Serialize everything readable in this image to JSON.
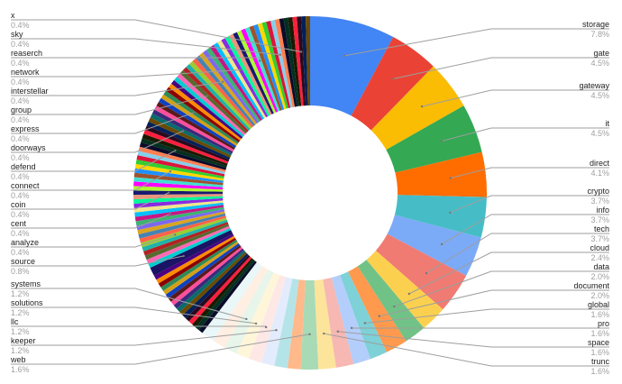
{
  "chart_data": {
    "type": "pie",
    "donut": true,
    "start": "top, clockwise",
    "title": "",
    "slices": [
      {
        "label": "storage",
        "pct": "7.8%",
        "v": 7.8,
        "color": "#4285f4"
      },
      {
        "label": "gate",
        "pct": "4.5%",
        "v": 4.5,
        "color": "#ea4335"
      },
      {
        "label": "gateway",
        "pct": "4.5%",
        "v": 4.5,
        "color": "#fbbc04"
      },
      {
        "label": "it",
        "pct": "4.5%",
        "v": 4.5,
        "color": "#34a853"
      },
      {
        "label": "direct",
        "pct": "4.1%",
        "v": 4.1,
        "color": "#ff6d01"
      },
      {
        "label": "crypto",
        "pct": "3.7%",
        "v": 3.7,
        "color": "#46bdc6"
      },
      {
        "label": "info",
        "pct": "3.7%",
        "v": 3.7,
        "color": "#7baaf7"
      },
      {
        "label": "tech",
        "pct": "3.7%",
        "v": 3.7,
        "color": "#f07b72"
      },
      {
        "label": "cloud",
        "pct": "2.4%",
        "v": 2.4,
        "color": "#fcd04f"
      },
      {
        "label": "data",
        "pct": "2.0%",
        "v": 2.0,
        "color": "#71c287"
      },
      {
        "label": "document",
        "pct": "2.0%",
        "v": 2.0,
        "color": "#ff994d"
      },
      {
        "label": "global",
        "pct": "1.6%",
        "v": 1.6,
        "color": "#7ed1d7"
      },
      {
        "label": "pro",
        "pct": "1.6%",
        "v": 1.6,
        "color": "#b3cefb"
      },
      {
        "label": "space",
        "pct": "1.6%",
        "v": 1.6,
        "color": "#f7b7b2"
      },
      {
        "label": "trunc",
        "pct": "1.6%",
        "v": 1.6,
        "color": "#fde49b"
      },
      {
        "label": "web",
        "pct": "1.6%",
        "v": 1.6,
        "color": "#a8dab5"
      },
      {
        "v": 1.2,
        "color": "#ffb98a"
      },
      {
        "v": 1.2,
        "color": "#b5e4e8"
      },
      {
        "label": "keeper",
        "pct": "1.2%",
        "v": 1.2,
        "color": "#e3ecfd"
      },
      {
        "label": "llc",
        "pct": "1.2%",
        "v": 1.2,
        "color": "#fde8e6"
      },
      {
        "label": "solutions",
        "pct": "1.2%",
        "v": 1.2,
        "color": "#fff6da"
      },
      {
        "label": "systems",
        "pct": "1.2%",
        "v": 1.2,
        "color": "#e7f5ea"
      },
      {
        "v": 1.2,
        "color": "#ffeee2"
      },
      {
        "v": 1.2,
        "color": "#e9f7f8"
      },
      {
        "v": 0.4,
        "repeat": 17
      },
      {
        "label": "source",
        "pct": "0.8%",
        "v": 0.8,
        "color": "#1b1464"
      },
      {
        "v": 0.4,
        "repeat": 5
      },
      {
        "label": "analyze",
        "pct": "0.4%",
        "v": 0.4
      },
      {
        "v": 0.4,
        "repeat": 5
      },
      {
        "label": "cent",
        "pct": "0.4%",
        "v": 0.4
      },
      {
        "v": 0.4,
        "repeat": 5
      },
      {
        "label": "coin",
        "pct": "0.4%",
        "v": 0.4
      },
      {
        "v": 0.4,
        "repeat": 5
      },
      {
        "label": "connect",
        "pct": "0.4%",
        "v": 0.4
      },
      {
        "v": 0.4,
        "repeat": 5
      },
      {
        "label": "defend",
        "pct": "0.4%",
        "v": 0.4
      },
      {
        "v": 0.4,
        "repeat": 5
      },
      {
        "label": "doorways",
        "pct": "0.4%",
        "v": 0.4
      },
      {
        "v": 0.4,
        "repeat": 5
      },
      {
        "label": "express",
        "pct": "0.4%",
        "v": 0.4
      },
      {
        "v": 0.4,
        "repeat": 5
      },
      {
        "label": "group",
        "pct": "0.4%",
        "v": 0.4
      },
      {
        "v": 0.4,
        "repeat": 5
      },
      {
        "label": "interstellar",
        "pct": "0.4%",
        "v": 0.4
      },
      {
        "v": 0.4,
        "repeat": 5
      },
      {
        "label": "network",
        "pct": "0.4%",
        "v": 0.4
      },
      {
        "v": 0.4,
        "repeat": 5
      },
      {
        "label": "reaserch",
        "pct": "0.4%",
        "v": 0.4
      },
      {
        "v": 0.4,
        "repeat": 5
      },
      {
        "label": "sky",
        "pct": "0.4%",
        "v": 0.4
      },
      {
        "v": 0.4,
        "repeat": 5
      },
      {
        "label": "x",
        "pct": "0.4%",
        "v": 0.4
      },
      {
        "v": 0.4,
        "repeat": 2
      }
    ],
    "small_slice_palette": [
      "#0b0b2b",
      "#023020",
      "#1a1a00",
      "#ff1f3d",
      "#2b0a1e",
      "#00205b",
      "#6b4a00",
      "#0a6b6b",
      "#3a2a7a",
      "#ff4f9a",
      "#5a1a1a",
      "#1040c0",
      "#d4a017",
      "#2e8b57",
      "#8b0000",
      "#ff8c00",
      "#4b0082",
      "#00ced1",
      "#ff69b4",
      "#556b2f",
      "#b22222",
      "#20b2aa",
      "#9acd32",
      "#ff6347",
      "#4682b4",
      "#daa520",
      "#7b68ee",
      "#3cb371",
      "#c71585",
      "#00bfff",
      "#f0e68c",
      "#8a2be2",
      "#00fa9a",
      "#e9967a",
      "#191970",
      "#adff2f",
      "#ff00ff",
      "#40e0d0",
      "#a0522d",
      "#1e90ff",
      "#ffd700",
      "#32cd32",
      "#dc143c",
      "#87ceeb",
      "#ff7f50"
    ]
  }
}
